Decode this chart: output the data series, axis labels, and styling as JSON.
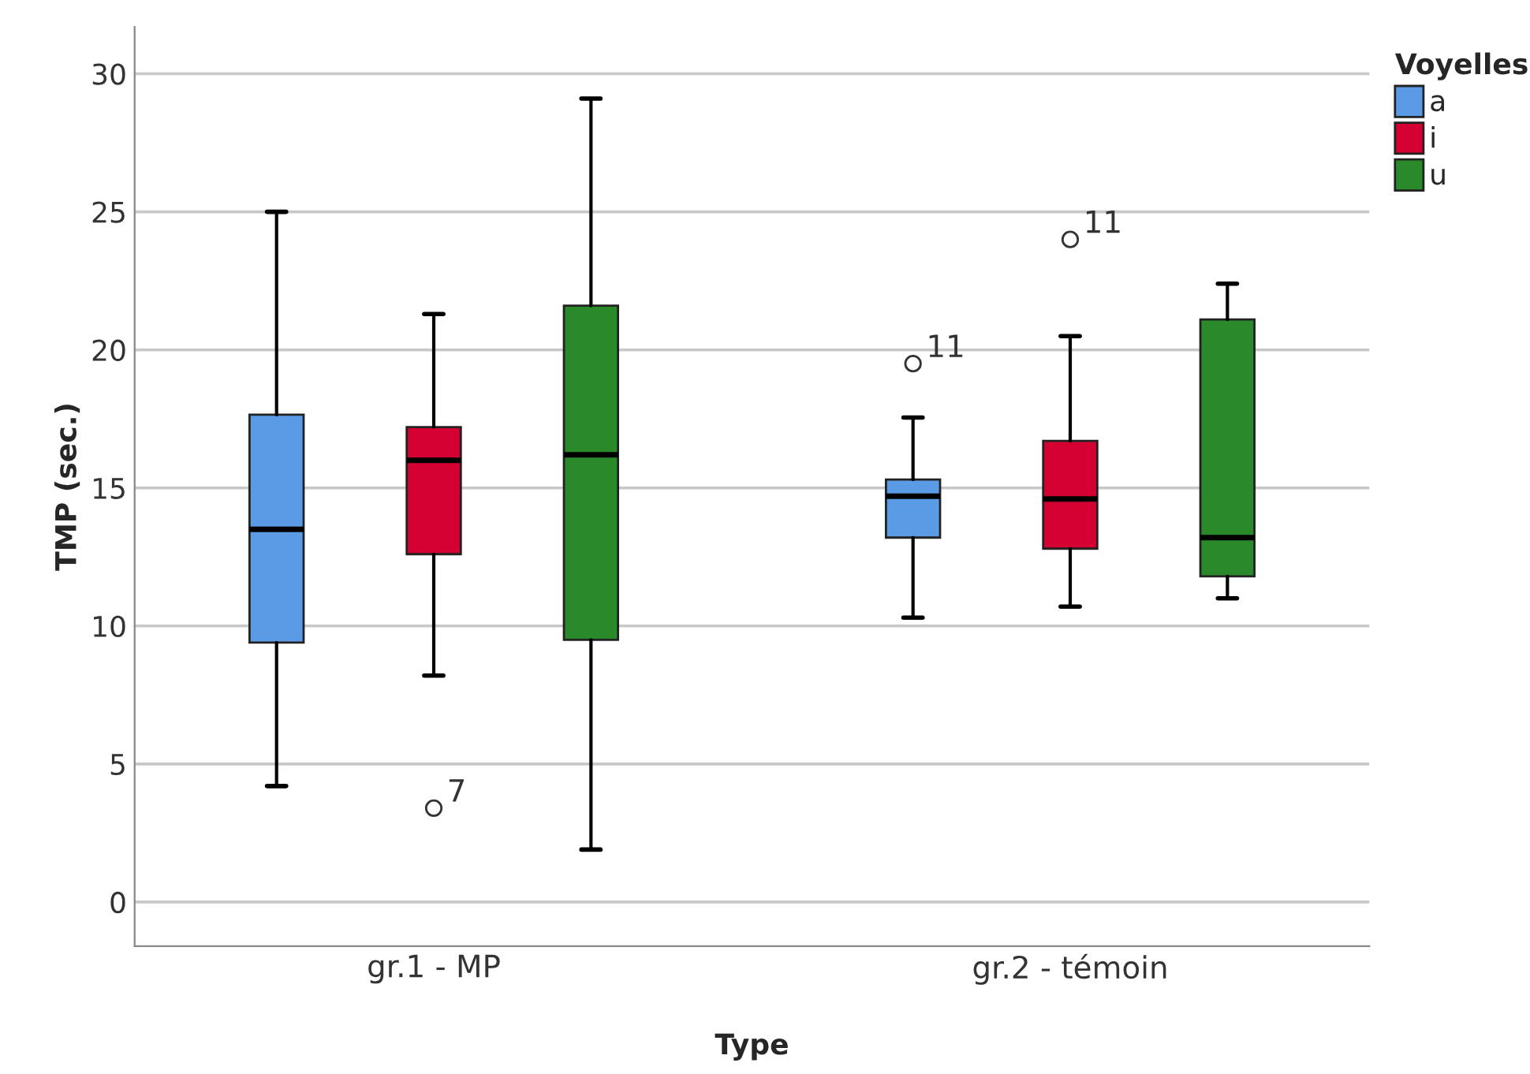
{
  "chart_data": {
    "type": "box",
    "xlabel": "Type",
    "ylabel": "TMP (sec.)",
    "legend_title": "Voyelles",
    "legend": "top right",
    "grid": "y",
    "categories": [
      "gr.1 - MP",
      "gr.2 - témoin"
    ],
    "ylim": [
      -1.6,
      31.7
    ],
    "yticks": [
      0,
      5,
      10,
      15,
      20,
      25,
      30
    ],
    "series": [
      {
        "name": "a",
        "color": "#5b9be6",
        "boxes": [
          {
            "low": 4.2,
            "q1": 9.4,
            "median": 13.5,
            "q3": 17.65,
            "high": 25.0
          },
          {
            "low": 10.3,
            "q1": 13.2,
            "median": 14.7,
            "q3": 15.3,
            "high": 17.55,
            "outliers": [
              19.5
            ]
          }
        ]
      },
      {
        "name": "i",
        "color": "#d50032",
        "boxes": [
          {
            "low": 8.2,
            "q1": 12.6,
            "median": 16.0,
            "q3": 17.2,
            "high": 21.3,
            "outliers": [
              3.4
            ]
          },
          {
            "low": 10.7,
            "q1": 12.8,
            "median": 14.6,
            "q3": 16.7,
            "high": 20.5,
            "outliers": [
              24.0
            ]
          }
        ]
      },
      {
        "name": "u",
        "color": "#2a8a2a",
        "boxes": [
          {
            "low": 1.9,
            "q1": 9.5,
            "median": 16.2,
            "q3": 21.6,
            "high": 29.1
          },
          {
            "low": 11.0,
            "q1": 11.8,
            "median": 13.2,
            "q3": 21.1,
            "high": 22.4
          }
        ]
      }
    ],
    "annotations": [
      "11",
      "7",
      "11"
    ]
  }
}
